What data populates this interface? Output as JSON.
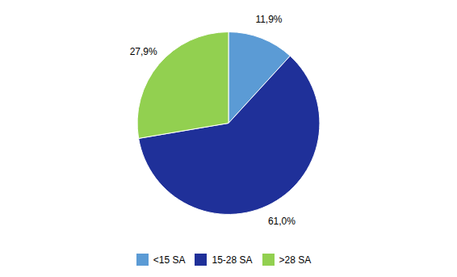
{
  "chart_data": {
    "type": "pie",
    "categories": [
      "<15 SA",
      "15-28 SA",
      ">28 SA"
    ],
    "values": [
      11.9,
      61.0,
      27.9
    ],
    "value_labels": [
      "11,9%",
      "61,0%",
      "27,9%"
    ],
    "colors": [
      "#5B9BD5",
      "#1F3099",
      "#92D050"
    ],
    "data_labels": true,
    "legend": "bottom"
  }
}
